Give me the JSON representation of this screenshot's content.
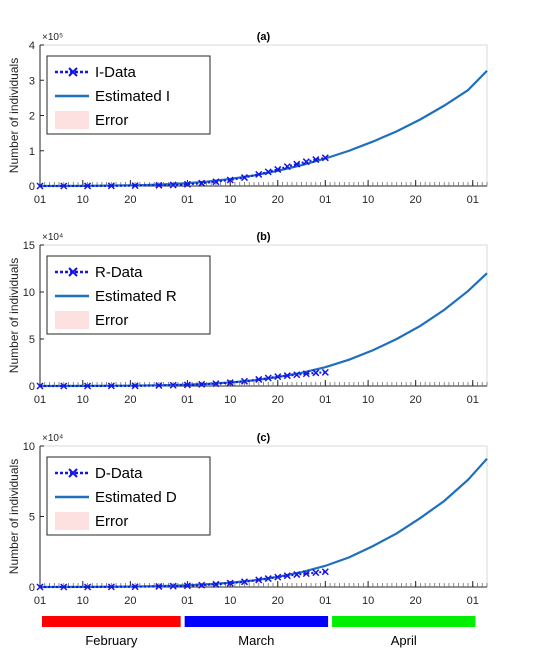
{
  "chart_data": [
    {
      "type": "line",
      "title": "(a)",
      "ylabel": "Number of individuals",
      "y_exponent_label": "×10⁵",
      "ylim": [
        0,
        4
      ],
      "yticks": [
        0,
        1,
        2,
        3,
        4
      ],
      "xlim": [
        0,
        94
      ],
      "xticks": [
        0,
        9,
        19,
        31,
        40,
        50,
        60,
        69,
        79,
        91
      ],
      "xtick_labels": [
        "01",
        "10",
        "20",
        "01",
        "10",
        "20",
        "01",
        "10",
        "20",
        "01"
      ],
      "grid": false,
      "legend_position": "top-left",
      "series": [
        {
          "name": "I-Data",
          "style": "dotted-x-markers",
          "color": "#1515e6",
          "x": [
            0,
            5,
            10,
            15,
            20,
            25,
            28,
            31,
            34,
            37,
            40,
            43,
            46,
            48,
            50,
            52,
            54,
            56,
            58,
            60
          ],
          "y": [
            0.0,
            0.0,
            0.002,
            0.005,
            0.01,
            0.02,
            0.03,
            0.05,
            0.08,
            0.12,
            0.17,
            0.24,
            0.33,
            0.4,
            0.47,
            0.55,
            0.62,
            0.69,
            0.75,
            0.8
          ]
        },
        {
          "name": "Estimated I",
          "style": "solid",
          "color": "#1f6fbf",
          "x": [
            0,
            10,
            20,
            25,
            30,
            35,
            40,
            45,
            50,
            55,
            60,
            65,
            70,
            75,
            80,
            85,
            90,
            94
          ],
          "y": [
            0.0,
            0.004,
            0.02,
            0.04,
            0.07,
            0.12,
            0.2,
            0.3,
            0.43,
            0.59,
            0.78,
            1.0,
            1.26,
            1.55,
            1.89,
            2.28,
            2.72,
            3.27
          ]
        },
        {
          "name": "Error",
          "style": "shaded-band",
          "color": "#fde0e0"
        }
      ]
    },
    {
      "type": "line",
      "title": "(b)",
      "ylabel": "Number of individuals",
      "y_exponent_label": "×10⁴",
      "ylim": [
        0,
        15
      ],
      "yticks": [
        0,
        5,
        10,
        15
      ],
      "xlim": [
        0,
        94
      ],
      "xticks": [
        0,
        9,
        19,
        31,
        40,
        50,
        60,
        69,
        79,
        91
      ],
      "xtick_labels": [
        "01",
        "10",
        "20",
        "01",
        "10",
        "20",
        "01",
        "10",
        "20",
        "01"
      ],
      "grid": false,
      "legend_position": "top-left",
      "series": [
        {
          "name": "R-Data",
          "style": "dotted-x-markers",
          "color": "#1515e6",
          "x": [
            0,
            5,
            10,
            15,
            20,
            25,
            28,
            31,
            34,
            37,
            40,
            43,
            46,
            48,
            50,
            52,
            54,
            56,
            58,
            60
          ],
          "y": [
            0.0,
            0.0,
            0.0,
            0.01,
            0.02,
            0.05,
            0.08,
            0.12,
            0.18,
            0.25,
            0.35,
            0.5,
            0.7,
            0.85,
            1.0,
            1.1,
            1.2,
            1.3,
            1.4,
            1.45
          ]
        },
        {
          "name": "Estimated R",
          "style": "solid",
          "color": "#1f6fbf",
          "x": [
            0,
            10,
            20,
            25,
            30,
            35,
            40,
            45,
            50,
            55,
            60,
            65,
            70,
            75,
            80,
            85,
            90,
            94
          ],
          "y": [
            0.0,
            0.01,
            0.04,
            0.07,
            0.13,
            0.22,
            0.38,
            0.6,
            0.95,
            1.4,
            2.0,
            2.8,
            3.8,
            5.0,
            6.4,
            8.1,
            10.1,
            12.0
          ]
        },
        {
          "name": "Error",
          "style": "shaded-band",
          "color": "#fde0e0"
        }
      ]
    },
    {
      "type": "line",
      "title": "(c)",
      "ylabel": "Number of individuals",
      "y_exponent_label": "×10⁴",
      "ylim": [
        0,
        10
      ],
      "yticks": [
        0,
        5,
        10
      ],
      "xlim": [
        0,
        94
      ],
      "xticks": [
        0,
        9,
        19,
        31,
        40,
        50,
        60,
        69,
        79,
        91
      ],
      "xtick_labels": [
        "01",
        "10",
        "20",
        "01",
        "10",
        "20",
        "01",
        "10",
        "20",
        "01"
      ],
      "grid": false,
      "legend_position": "top-left",
      "series": [
        {
          "name": "D-Data",
          "style": "dotted-x-markers",
          "color": "#1515e6",
          "x": [
            0,
            5,
            10,
            15,
            20,
            25,
            28,
            31,
            34,
            37,
            40,
            43,
            46,
            48,
            50,
            52,
            54,
            56,
            58,
            60
          ],
          "y": [
            0.0,
            0.0,
            0.0,
            0.01,
            0.02,
            0.04,
            0.06,
            0.09,
            0.13,
            0.19,
            0.27,
            0.37,
            0.5,
            0.6,
            0.7,
            0.8,
            0.88,
            0.95,
            1.02,
            1.08
          ]
        },
        {
          "name": "Estimated D",
          "style": "solid",
          "color": "#1f6fbf",
          "x": [
            0,
            10,
            20,
            25,
            30,
            35,
            40,
            45,
            50,
            55,
            60,
            65,
            70,
            75,
            80,
            85,
            90,
            94
          ],
          "y": [
            0.0,
            0.01,
            0.03,
            0.06,
            0.11,
            0.19,
            0.3,
            0.47,
            0.72,
            1.05,
            1.5,
            2.1,
            2.9,
            3.8,
            4.9,
            6.1,
            7.6,
            9.1
          ]
        },
        {
          "name": "Error",
          "style": "shaded-band",
          "color": "#fde0e0"
        }
      ]
    }
  ],
  "months": [
    {
      "label": "February",
      "color": "#ff0000",
      "start": 0,
      "end": 29
    },
    {
      "label": "March",
      "color": "#0000ff",
      "start": 30,
      "end": 60
    },
    {
      "label": "April",
      "color": "#00ee00",
      "start": 61,
      "end": 91
    }
  ]
}
